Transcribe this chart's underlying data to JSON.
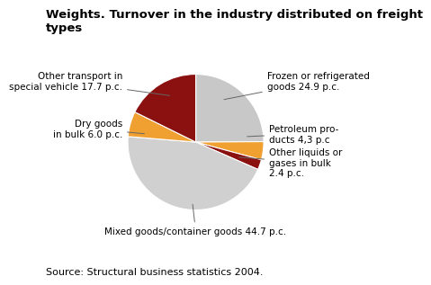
{
  "title_line1": "Weights. Turnover in the industry distributed on freight",
  "title_line2": "types",
  "source": "Source: Structural business statistics 2004.",
  "slices": [
    {
      "label": "Frozen or refrigerated\ngoods 24.9 p.c.",
      "value": 24.9,
      "color": "#c8c8c8"
    },
    {
      "label": "Petroleum pro-\nducts 4,3 p.c",
      "value": 4.3,
      "color": "#f0a030"
    },
    {
      "label": "Other liquids or\ngases in bulk\n2.4 p.c.",
      "value": 2.4,
      "color": "#8b1010"
    },
    {
      "label": "Mixed goods/container goods 44.7 p.c.",
      "value": 44.7,
      "color": "#d0d0d0"
    },
    {
      "label": "Dry goods\nin bulk 6.0 p.c.",
      "value": 6.0,
      "color": "#f0a030"
    },
    {
      "label": "Other transport in\nspecial vehicle 17.7 p.c.",
      "value": 17.7,
      "color": "#8b1010"
    }
  ],
  "background_color": "#ffffff",
  "title_fontsize": 9.5,
  "label_fontsize": 7.5,
  "source_fontsize": 8
}
